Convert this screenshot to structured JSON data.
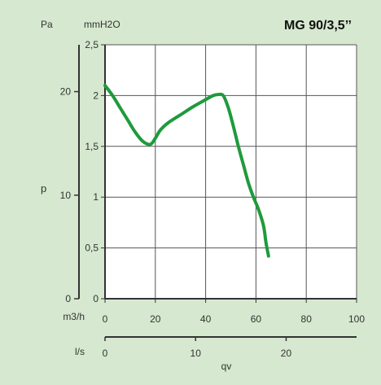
{
  "chart_data": {
    "type": "line",
    "title": "MG 90/3,5’’",
    "y_units": {
      "pa": "Pa",
      "mmh2o": "mmH2O"
    },
    "ylabel": "p",
    "xlabel": "qv",
    "axis_labels": {
      "m3h": "m3/h",
      "ls": "l/s"
    },
    "x_ticks_m3h": [
      "0",
      "20",
      "40",
      "60",
      "80",
      "100"
    ],
    "x_ticks_ls": [
      "0",
      "10",
      "20"
    ],
    "y_ticks_mmh2o": [
      "0",
      "0,5",
      "1",
      "1,5",
      "2",
      "2,5"
    ],
    "y_ticks_pa": [
      "0",
      "10",
      "20"
    ],
    "xlim": [
      0,
      100
    ],
    "ylim": [
      0,
      2.5
    ],
    "grid": true,
    "series": [
      {
        "color": "#1f9a3c",
        "x": [
          0,
          3,
          6,
          9,
          12,
          15,
          18,
          20,
          22,
          25,
          30,
          35,
          40,
          43,
          45,
          47,
          49,
          51,
          53,
          55,
          57,
          59,
          61,
          63,
          64,
          65
        ],
        "y": [
          2.1,
          2.0,
          1.88,
          1.76,
          1.64,
          1.55,
          1.52,
          1.58,
          1.66,
          1.73,
          1.81,
          1.89,
          1.96,
          2.0,
          2.01,
          2.0,
          1.88,
          1.7,
          1.5,
          1.32,
          1.14,
          1.0,
          0.88,
          0.72,
          0.55,
          0.42
        ]
      }
    ]
  }
}
